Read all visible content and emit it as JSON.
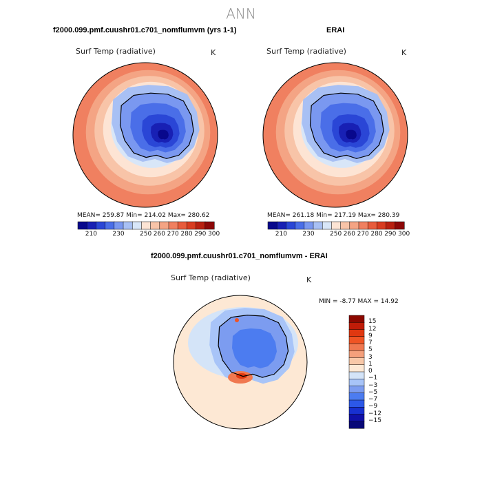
{
  "figure": {
    "supertitle": "ANN"
  },
  "colors": {
    "abs_scale": [
      "#08088c",
      "#1820b4",
      "#2a46d6",
      "#4a6ee8",
      "#7a98f0",
      "#a8c0f4",
      "#d8e6f8",
      "#fde4d4",
      "#f8c4a8",
      "#f4a484",
      "#f08060",
      "#e85c3c",
      "#d83c20",
      "#b82010",
      "#8c0808"
    ],
    "diff_scale": [
      "#080878",
      "#1010a8",
      "#1830d0",
      "#2c58e8",
      "#4c7cf0",
      "#7c9cf0",
      "#a8c4f8",
      "#d4e4f8",
      "#fde8d4",
      "#f8c8a8",
      "#f4a07c",
      "#f07850",
      "#f05424",
      "#e03810",
      "#c01c08",
      "#8c0800"
    ],
    "outline": "#000000",
    "coast": "#000000"
  },
  "panels": {
    "model": {
      "title": "f2000.099.pmf.cuushr01.c701_nomflumvm (yrs 1-1)",
      "variable": "Surf Temp (radiative)",
      "units": "K",
      "stats": "MEAN= 259.87   Min= 214.02   Max= 280.62"
    },
    "obs": {
      "title": "ERAI",
      "variable": "Surf Temp (radiative)",
      "units": "K",
      "stats": "MEAN= 261.18   Min= 217.19   Max= 280.39"
    },
    "diff": {
      "title": "f2000.099.pmf.cuushr01.c701_nomflumvm - ERAI",
      "variable": "Surf Temp (radiative)",
      "units": "K",
      "minmax": "MIN =   -8.77 MAX =   14.92"
    }
  },
  "chart_data": [
    {
      "type": "heatmap",
      "projection": "south-polar-stereographic",
      "title": "f2000.099.pmf.cuushr01.c701_nomflumvm (yrs 1-1)",
      "variable": "Surf Temp (radiative)",
      "units": "K",
      "mean": 259.87,
      "min": 214.02,
      "max": 280.62,
      "colorbar_ticks": [
        "210",
        "230",
        "250",
        "260",
        "270",
        "280",
        "290",
        "300"
      ],
      "levels": [
        210,
        220,
        230,
        240,
        250,
        255,
        260,
        265,
        270,
        275,
        280,
        285,
        290,
        295,
        300
      ]
    },
    {
      "type": "heatmap",
      "projection": "south-polar-stereographic",
      "title": "ERAI",
      "variable": "Surf Temp (radiative)",
      "units": "K",
      "mean": 261.18,
      "min": 217.19,
      "max": 280.39,
      "colorbar_ticks": [
        "210",
        "230",
        "250",
        "260",
        "270",
        "280",
        "290",
        "300"
      ],
      "levels": [
        210,
        220,
        230,
        240,
        250,
        255,
        260,
        265,
        270,
        275,
        280,
        285,
        290,
        295,
        300
      ]
    },
    {
      "type": "heatmap",
      "projection": "south-polar-stereographic",
      "title": "f2000.099.pmf.cuushr01.c701_nomflumvm - ERAI",
      "variable": "Surf Temp (radiative)",
      "units": "K",
      "min": -8.77,
      "max": 14.92,
      "colorbar_ticks": [
        "15",
        "12",
        "9",
        "7",
        "5",
        "3",
        "1",
        "0",
        "−1",
        "−3",
        "−5",
        "−7",
        "−9",
        "−12",
        "−15"
      ],
      "colorbar_orientation": "vertical"
    }
  ]
}
